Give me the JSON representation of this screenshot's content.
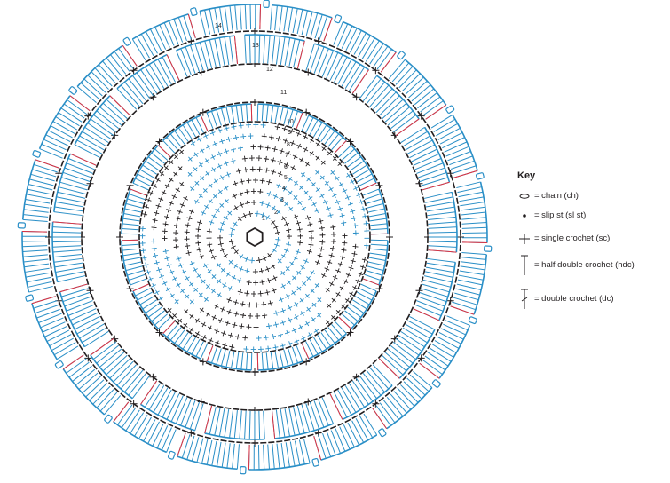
{
  "diagram": {
    "round_numbers": [
      "1",
      "2",
      "3",
      "4",
      "5",
      "6",
      "7",
      "8",
      "9",
      "10",
      "11",
      "12",
      "13",
      "14"
    ],
    "colors": {
      "blue": "#2a8fc7",
      "dark": "#231f20",
      "red": "#e0313f",
      "background": "#ffffff"
    }
  },
  "legend": {
    "title": "Key",
    "items": [
      {
        "symbol": "chain-oval-icon",
        "label": "= chain (ch)"
      },
      {
        "symbol": "slip-stitch-dot-icon",
        "label": "= slip st (sl st)"
      },
      {
        "symbol": "single-crochet-cross-icon",
        "label": "= single crochet (sc)"
      },
      {
        "symbol": "half-double-crochet-icon",
        "label": "= half double crochet (hdc)"
      },
      {
        "symbol": "double-crochet-icon",
        "label": "= double crochet (dc)"
      }
    ]
  }
}
